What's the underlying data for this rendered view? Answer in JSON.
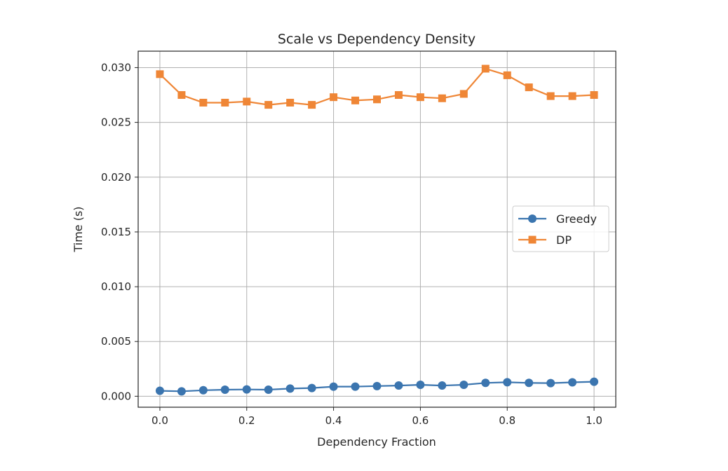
{
  "chart_data": {
    "type": "line",
    "title": "Scale vs Dependency Density",
    "xlabel": "Dependency Fraction",
    "ylabel": "Time (s)",
    "xlim": [
      -0.05,
      1.05
    ],
    "ylim": [
      -0.001,
      0.0315
    ],
    "xticks": [
      0.0,
      0.2,
      0.4,
      0.6,
      0.8,
      1.0
    ],
    "xtick_labels": [
      "0.0",
      "0.2",
      "0.4",
      "0.6",
      "0.8",
      "1.0"
    ],
    "yticks": [
      0.0,
      0.005,
      0.01,
      0.015,
      0.02,
      0.025,
      0.03
    ],
    "ytick_labels": [
      "0.000",
      "0.005",
      "0.010",
      "0.015",
      "0.020",
      "0.025",
      "0.030"
    ],
    "grid": true,
    "legend_position": "center-right",
    "x": [
      0.0,
      0.05,
      0.1,
      0.15,
      0.2,
      0.25,
      0.3,
      0.35,
      0.4,
      0.45,
      0.5,
      0.55,
      0.6,
      0.65,
      0.7,
      0.75,
      0.8,
      0.85,
      0.9,
      0.95,
      1.0
    ],
    "series": [
      {
        "name": "Greedy",
        "color": "#3b75af",
        "marker": "circle",
        "values": [
          0.0005,
          0.00045,
          0.00055,
          0.0006,
          0.00062,
          0.0006,
          0.0007,
          0.00075,
          0.00088,
          0.00088,
          0.00093,
          0.00098,
          0.00105,
          0.00098,
          0.00105,
          0.00122,
          0.00128,
          0.00122,
          0.0012,
          0.00127,
          0.00133
        ]
      },
      {
        "name": "DP",
        "color": "#ef8636",
        "marker": "square",
        "values": [
          0.0294,
          0.0275,
          0.0268,
          0.0268,
          0.0269,
          0.0266,
          0.0268,
          0.0266,
          0.0273,
          0.027,
          0.0271,
          0.0275,
          0.0273,
          0.0272,
          0.0276,
          0.0299,
          0.0293,
          0.0282,
          0.0274,
          0.0274,
          0.0275
        ]
      }
    ]
  }
}
